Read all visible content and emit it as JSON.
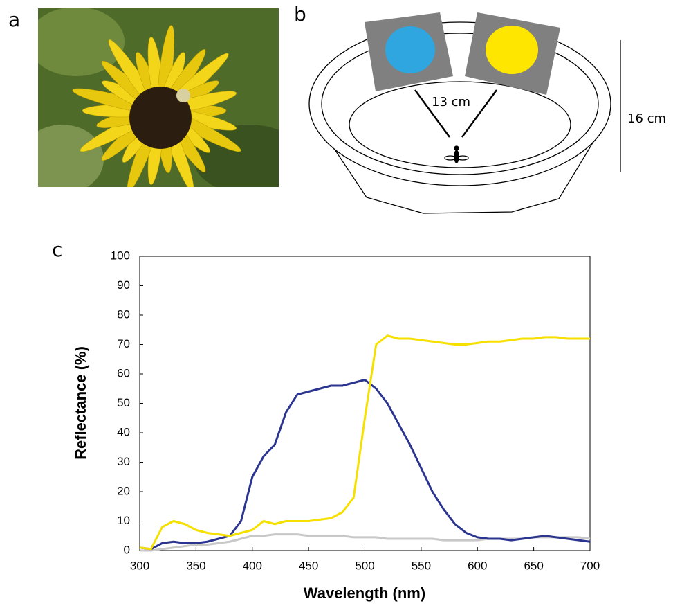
{
  "panels": {
    "a": {
      "label": "a"
    },
    "b": {
      "label": "b",
      "distance_label": "13 cm",
      "height_label": "16 cm"
    },
    "c": {
      "label": "c"
    }
  },
  "chart_data": {
    "type": "line",
    "xlabel": "Wavelength (nm)",
    "ylabel": "Reflectance (%)",
    "x": [
      300,
      310,
      320,
      330,
      340,
      350,
      360,
      370,
      380,
      390,
      400,
      410,
      420,
      430,
      440,
      450,
      460,
      470,
      480,
      490,
      500,
      510,
      520,
      530,
      540,
      550,
      560,
      570,
      580,
      590,
      600,
      610,
      620,
      630,
      640,
      650,
      660,
      670,
      680,
      690,
      700
    ],
    "series": [
      {
        "color": "#c8c8c8",
        "values": [
          0,
          0,
          0.5,
          1,
          1.5,
          2,
          2,
          2.5,
          3,
          4,
          5,
          5,
          5.5,
          5.5,
          5.5,
          5,
          5,
          5,
          5,
          4.5,
          4.5,
          4.5,
          4,
          4,
          4,
          4,
          4,
          3.5,
          3.5,
          3.5,
          3.5,
          4,
          4,
          4,
          4,
          4.5,
          4.5,
          4.5,
          4.5,
          4.5,
          4
        ]
      },
      {
        "color": "#2b3590",
        "values": [
          1,
          0.5,
          2.5,
          3,
          2.5,
          2.5,
          3,
          4,
          5,
          10,
          25,
          32,
          36,
          47,
          53,
          54,
          55,
          56,
          56,
          57,
          58,
          55,
          50,
          43,
          36,
          28,
          20,
          14,
          9,
          6,
          4.5,
          4,
          4,
          3.5,
          4,
          4.5,
          5,
          4.5,
          4,
          3.5,
          3
        ]
      },
      {
        "color": "#f5e000",
        "values": [
          1,
          0.5,
          8,
          10,
          9,
          7,
          6,
          5.5,
          5,
          6,
          7,
          10,
          9,
          10,
          10,
          10,
          10.5,
          11,
          13,
          18,
          45,
          70,
          73,
          72,
          72,
          71.5,
          71,
          70.5,
          70,
          70,
          70.5,
          71,
          71,
          71.5,
          72,
          72,
          72.5,
          72.5,
          72,
          72,
          72
        ]
      }
    ],
    "xlim": [
      300,
      700
    ],
    "ylim": [
      0,
      100
    ],
    "xticks": [
      300,
      350,
      400,
      450,
      500,
      550,
      600,
      650,
      700
    ],
    "yticks": [
      0,
      10,
      20,
      30,
      40,
      50,
      60,
      70,
      80,
      90,
      100
    ]
  }
}
